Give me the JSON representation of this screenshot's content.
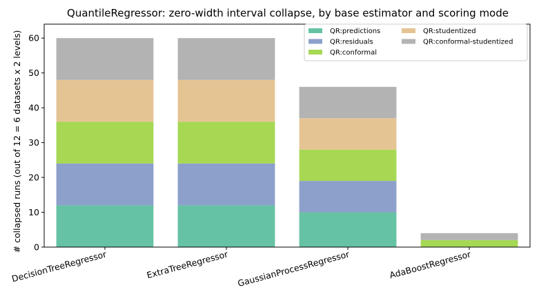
{
  "chart_data": {
    "type": "bar",
    "stacked": true,
    "title": "QuantileRegressor: zero-width interval collapse, by base estimator and scoring mode",
    "xlabel": "",
    "ylabel": "# collapsed runs (out of 12 = 6 datasets x 2 levels)",
    "categories": [
      "DecisionTreeRegressor",
      "ExtraTreeRegressor",
      "GaussianProcessRegressor",
      "AdaBoostRegressor"
    ],
    "series": [
      {
        "name": "QR:predictions",
        "color": "#66c2a5",
        "values": [
          12,
          12,
          10,
          0
        ]
      },
      {
        "name": "QR:residuals",
        "color": "#8da0cb",
        "values": [
          12,
          12,
          9,
          0
        ]
      },
      {
        "name": "QR:conformal",
        "color": "#a6d854",
        "values": [
          12,
          12,
          9,
          2
        ]
      },
      {
        "name": "QR:studentized",
        "color": "#e5c494",
        "values": [
          12,
          12,
          9,
          0
        ]
      },
      {
        "name": "QR:conformal-studentized",
        "color": "#b3b3b3",
        "values": [
          12,
          12,
          9,
          2
        ]
      }
    ],
    "ylim": [
      0,
      64
    ],
    "yticks": [
      0,
      10,
      20,
      30,
      40,
      50,
      60
    ],
    "legend": {
      "placement": "top-right",
      "columns": 2
    },
    "grid": false
  }
}
